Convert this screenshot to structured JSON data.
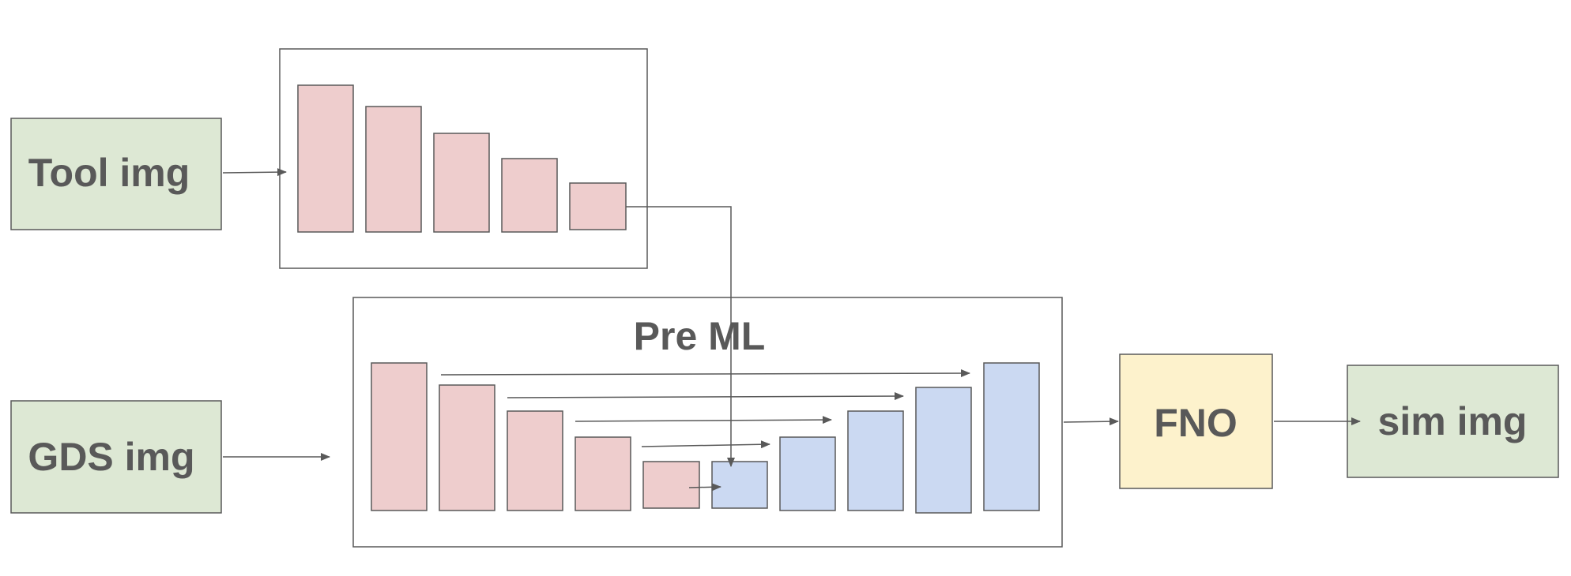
{
  "nodes": {
    "tool_img": {
      "label": "Tool img",
      "fill": "#dde8d4"
    },
    "gds_img": {
      "label": "GDS img",
      "fill": "#dde8d4"
    },
    "pre_ml": {
      "label": "Pre ML"
    },
    "fno": {
      "label": "FNO",
      "fill": "#fdf2cc"
    },
    "sim_img": {
      "label": "sim img",
      "fill": "#dde8d4"
    }
  },
  "colors": {
    "encoder_block": "#eecdcd",
    "decoder_block": "#cbd9f2",
    "stroke": "#595959"
  }
}
